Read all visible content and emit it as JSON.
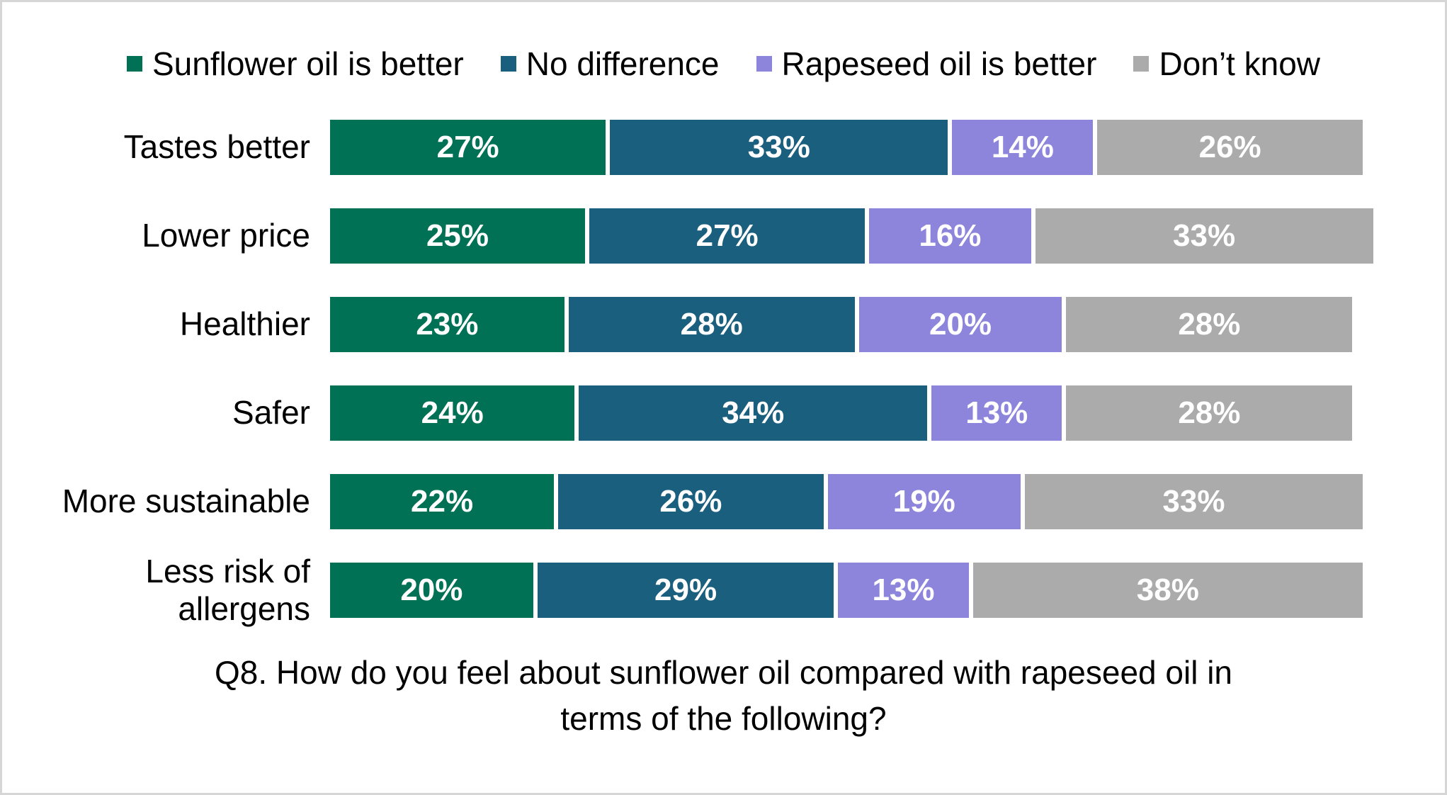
{
  "chart_data": {
    "type": "bar",
    "variant": "horizontal-stacked",
    "title": "",
    "caption": "Q8. How do you feel about sunflower oil compared with rapeseed oil in terms of the following?",
    "legend_position": "top",
    "value_format": "percent",
    "xlim": [
      0,
      100
    ],
    "grid": false,
    "categories": [
      "Tastes better",
      "Lower price",
      "Healthier",
      "Safer",
      "More sustainable",
      "Less risk of allergens"
    ],
    "series": [
      {
        "name": "Sunflower oil is better",
        "color": "#007155",
        "values": [
          27,
          25,
          23,
          24,
          22,
          20
        ]
      },
      {
        "name": "No difference",
        "color": "#1B5F7F",
        "values": [
          33,
          27,
          28,
          34,
          26,
          29
        ]
      },
      {
        "name": "Rapeseed oil is better",
        "color": "#8D85DB",
        "values": [
          14,
          16,
          20,
          13,
          19,
          13
        ]
      },
      {
        "name": "Don’t know",
        "color": "#ABABAB",
        "values": [
          26,
          33,
          28,
          28,
          33,
          38
        ]
      }
    ],
    "label_text_color": "#ffffff",
    "frame_border_color": "#d6d6d6"
  }
}
